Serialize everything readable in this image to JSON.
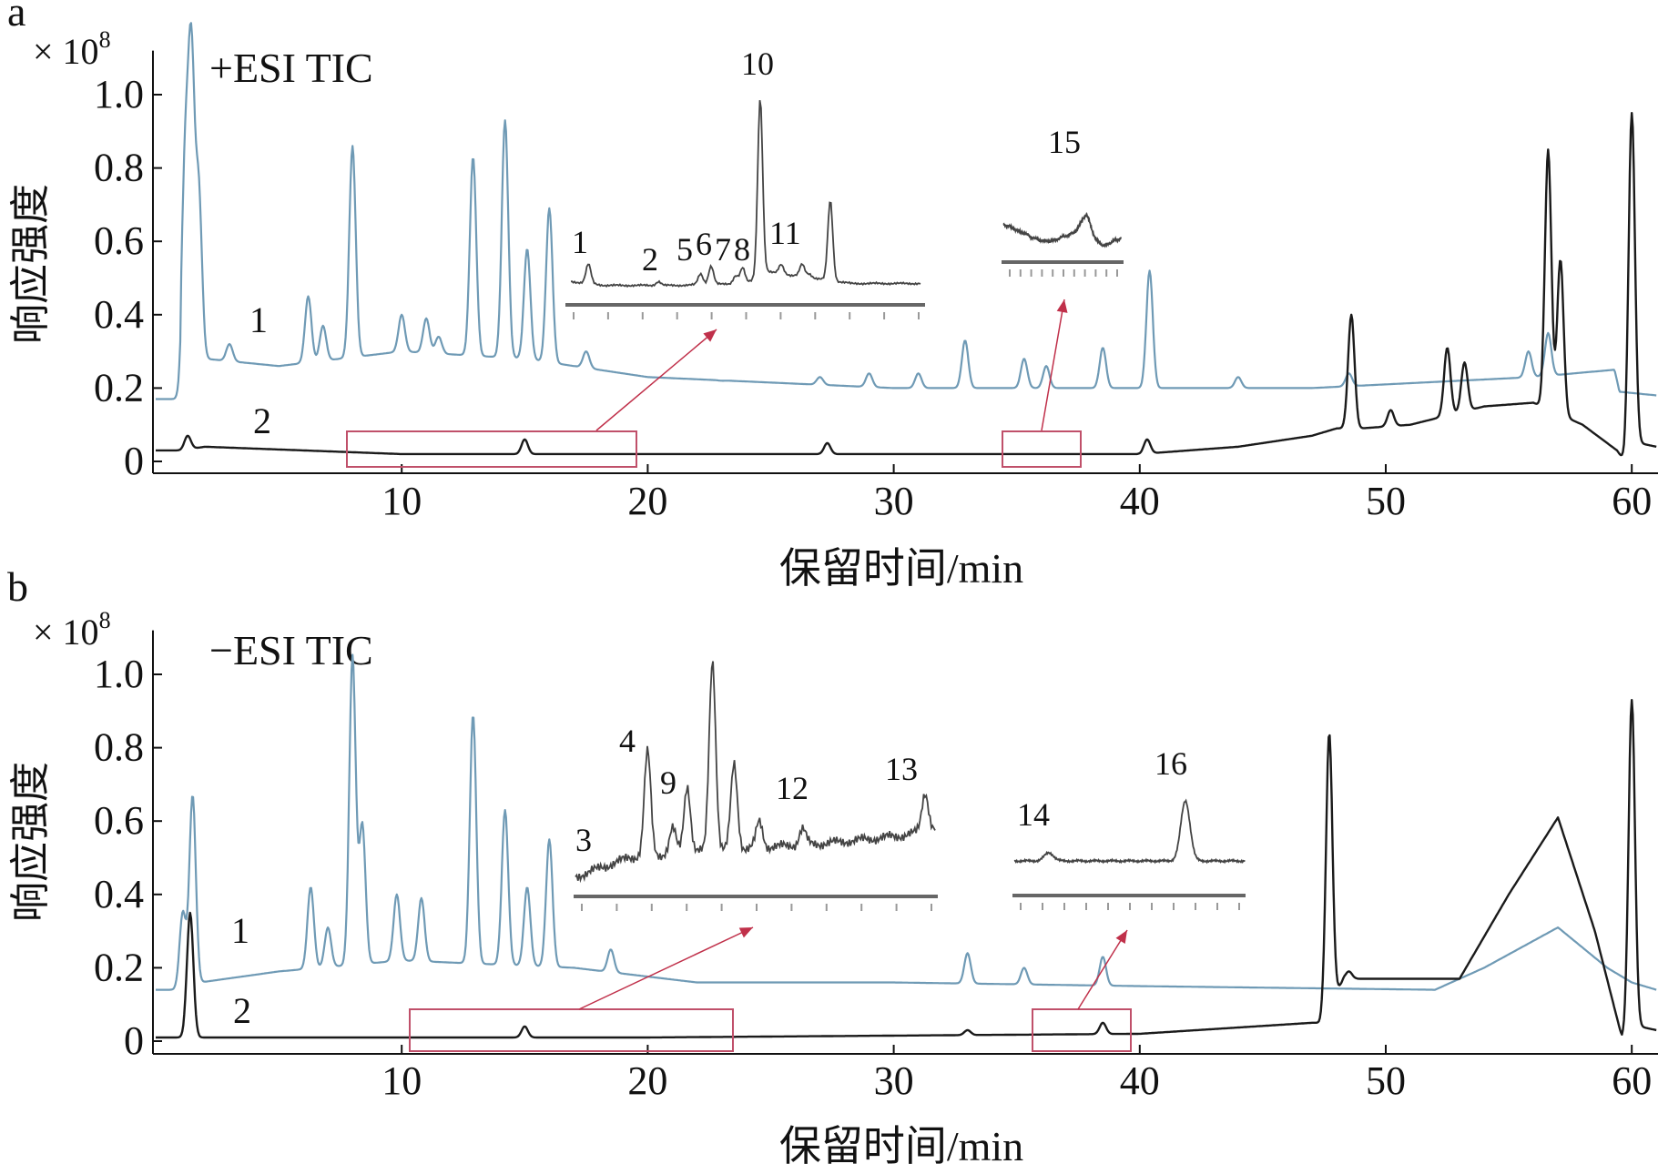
{
  "colors": {
    "trace1": "#6f9ab5",
    "trace2": "#1a1a1a",
    "box": "#c0506a",
    "arrow": "#c0304a"
  },
  "chart_data": [
    {
      "type": "line",
      "panel": "a",
      "title": "+ESI TIC",
      "multiplier": "× 10",
      "multiplier_exp": "8",
      "xlabel": "保留时间/min",
      "ylabel": "响应强度",
      "xlim": [
        0,
        61
      ],
      "ylim": [
        0,
        1.1
      ],
      "xticks": [
        "10",
        "20",
        "30",
        "40",
        "50",
        "60"
      ],
      "yticks": [
        "0",
        "0.2",
        "0.4",
        "0.6",
        "0.8",
        "1.0"
      ],
      "series": [
        {
          "name": "1",
          "color": "#6f9ab5",
          "baseline": [
            [
              0,
              0.17
            ],
            [
              1.0,
              0.17
            ],
            [
              1.05,
              0.3
            ],
            [
              2,
              0.28
            ],
            [
              5,
              0.26
            ],
            [
              10,
              0.3
            ],
            [
              15,
              0.28
            ],
            [
              20,
              0.23
            ],
            [
              30,
              0.2
            ],
            [
              40,
              0.2
            ],
            [
              47,
              0.2
            ],
            [
              56,
              0.23
            ],
            [
              59.3,
              0.25
            ],
            [
              59.5,
              0.19
            ],
            [
              61,
              0.18
            ]
          ],
          "peaks": [
            [
              1.2,
              0.8
            ],
            [
              1.45,
              1.08
            ],
            [
              1.75,
              0.73
            ],
            [
              3,
              0.32
            ],
            [
              6.2,
              0.45
            ],
            [
              6.8,
              0.37
            ],
            [
              8.0,
              0.86
            ],
            [
              10,
              0.4
            ],
            [
              11,
              0.39
            ],
            [
              11.5,
              0.34
            ],
            [
              12.9,
              0.83
            ],
            [
              14.2,
              0.93
            ],
            [
              15.1,
              0.58
            ],
            [
              16,
              0.69
            ],
            [
              17.5,
              0.3
            ],
            [
              23,
              0.22
            ],
            [
              27,
              0.23
            ],
            [
              29,
              0.24
            ],
            [
              31,
              0.24
            ],
            [
              32.9,
              0.33
            ],
            [
              35.3,
              0.28
            ],
            [
              36.2,
              0.26
            ],
            [
              38.5,
              0.31
            ],
            [
              40.4,
              0.52
            ],
            [
              44,
              0.23
            ],
            [
              48.5,
              0.24
            ],
            [
              55.8,
              0.3
            ],
            [
              56.6,
              0.35
            ]
          ]
        },
        {
          "name": "2",
          "color": "#1a1a1a",
          "baseline": [
            [
              0,
              0.03
            ],
            [
              1,
              0.03
            ],
            [
              2,
              0.04
            ],
            [
              10,
              0.02
            ],
            [
              30,
              0.02
            ],
            [
              40,
              0.02
            ],
            [
              44,
              0.04
            ],
            [
              47,
              0.07
            ],
            [
              48,
              0.09
            ],
            [
              49,
              0.09
            ],
            [
              51,
              0.1
            ],
            [
              54,
              0.15
            ],
            [
              56,
              0.16
            ],
            [
              58,
              0.1
            ],
            [
              59.4,
              0.03
            ],
            [
              59.7,
              0.0
            ],
            [
              60.3,
              0.05
            ],
            [
              61,
              0.04
            ]
          ],
          "peaks": [
            [
              1.3,
              0.07
            ],
            [
              15,
              0.06
            ],
            [
              27.3,
              0.05
            ],
            [
              40.3,
              0.06
            ],
            [
              48.6,
              0.4
            ],
            [
              50.2,
              0.14
            ],
            [
              52.5,
              0.31
            ],
            [
              53.2,
              0.27
            ],
            [
              56.6,
              0.85
            ],
            [
              57.1,
              0.55
            ],
            [
              60,
              0.95
            ]
          ]
        }
      ],
      "highlight_ranges": [
        [
          8,
          19.5
        ],
        [
          34.5,
          37.5
        ]
      ],
      "insets": [
        {
          "baseline": [
            [
              0,
              0.05
            ],
            [
              10,
              0.03
            ],
            [
              30,
              0.03
            ],
            [
              50,
              0.04
            ],
            [
              56,
              0.1
            ],
            [
              80,
              0.04
            ],
            [
              100,
              0.04
            ]
          ],
          "peaks": [
            [
              5,
              0.14
            ],
            [
              25,
              0.05
            ],
            [
              37,
              0.09
            ],
            [
              40,
              0.13
            ],
            [
              47,
              0.08
            ],
            [
              49,
              0.12
            ],
            [
              54,
              1.0
            ],
            [
              60,
              0.14
            ],
            [
              63,
              0.08
            ],
            [
              66,
              0.14
            ],
            [
              68,
              0.09
            ],
            [
              74,
              0.47
            ]
          ],
          "labels": [
            "1",
            "2",
            "5",
            "6",
            "7",
            "8",
            "10",
            "11"
          ]
        },
        {
          "baseline": [
            [
              0,
              0.6
            ],
            [
              10,
              0.5
            ],
            [
              30,
              0.3
            ],
            [
              40,
              0.28
            ],
            [
              55,
              0.4
            ],
            [
              63,
              0.45
            ],
            [
              85,
              0.2
            ],
            [
              100,
              0.35
            ]
          ],
          "peaks": [
            [
              70,
              0.75
            ]
          ],
          "labels": [
            "15"
          ]
        }
      ]
    },
    {
      "type": "line",
      "panel": "b",
      "title": "−ESI TIC",
      "multiplier": "× 10",
      "multiplier_exp": "8",
      "xlabel": "保留时间/min",
      "ylabel": "响应强度",
      "xlim": [
        0,
        61
      ],
      "ylim": [
        0,
        1.1
      ],
      "xticks": [
        "10",
        "20",
        "30",
        "40",
        "50",
        "60"
      ],
      "yticks": [
        "0",
        "0.2",
        "0.4",
        "0.6",
        "0.8",
        "1.0"
      ],
      "series": [
        {
          "name": "1",
          "color": "#6f9ab5",
          "baseline": [
            [
              0,
              0.14
            ],
            [
              1,
              0.14
            ],
            [
              1.8,
              0.16
            ],
            [
              5,
              0.19
            ],
            [
              10,
              0.22
            ],
            [
              17,
              0.2
            ],
            [
              22,
              0.16
            ],
            [
              30,
              0.16
            ],
            [
              40,
              0.15
            ],
            [
              52,
              0.14
            ],
            [
              54,
              0.2
            ],
            [
              57,
              0.31
            ],
            [
              59,
              0.2
            ],
            [
              60,
              0.16
            ],
            [
              61,
              0.14
            ]
          ],
          "peaks": [
            [
              1.1,
              0.35
            ],
            [
              1.5,
              0.67
            ],
            [
              6.3,
              0.42
            ],
            [
              7,
              0.31
            ],
            [
              8.0,
              1.05
            ],
            [
              8.4,
              0.59
            ],
            [
              9.8,
              0.4
            ],
            [
              10.8,
              0.39
            ],
            [
              12.9,
              0.89
            ],
            [
              14.2,
              0.63
            ],
            [
              15.1,
              0.42
            ],
            [
              16,
              0.55
            ],
            [
              18.5,
              0.25
            ],
            [
              33,
              0.24
            ],
            [
              35.3,
              0.2
            ],
            [
              38.5,
              0.23
            ]
          ]
        },
        {
          "name": "2",
          "color": "#1a1a1a",
          "baseline": [
            [
              0,
              0.01
            ],
            [
              1,
              0.01
            ],
            [
              20,
              0.01
            ],
            [
              40,
              0.02
            ],
            [
              47,
              0.05
            ],
            [
              47.3,
              0.05
            ],
            [
              48.3,
              0.17
            ],
            [
              53,
              0.17
            ],
            [
              55,
              0.4
            ],
            [
              57,
              0.61
            ],
            [
              58.5,
              0.3
            ],
            [
              59.6,
              0.01
            ],
            [
              60.3,
              0.04
            ],
            [
              61,
              0.03
            ]
          ],
          "peaks": [
            [
              1.4,
              0.35
            ],
            [
              15,
              0.04
            ],
            [
              33,
              0.03
            ],
            [
              38.5,
              0.05
            ],
            [
              47.7,
              0.84
            ],
            [
              48.5,
              0.19
            ],
            [
              60,
              0.93
            ]
          ]
        }
      ],
      "highlight_ranges": [
        [
          10.5,
          23.5
        ],
        [
          35.5,
          39.5
        ]
      ],
      "insets": [
        {
          "baseline": [
            [
              0,
              0.1
            ],
            [
              15,
              0.18
            ],
            [
              30,
              0.2
            ],
            [
              50,
              0.22
            ],
            [
              70,
              0.24
            ],
            [
              90,
              0.27
            ],
            [
              100,
              0.3
            ]
          ],
          "peaks": [
            [
              20,
              0.62
            ],
            [
              27,
              0.3
            ],
            [
              31,
              0.48
            ],
            [
              38,
              1.0
            ],
            [
              44,
              0.57
            ],
            [
              51,
              0.33
            ],
            [
              63,
              0.3
            ],
            [
              97,
              0.45
            ]
          ],
          "labels": [
            "3",
            "4",
            "9",
            "12",
            "13"
          ]
        },
        {
          "baseline": [
            [
              0,
              0.26
            ],
            [
              100,
              0.26
            ]
          ],
          "peaks": [
            [
              15,
              0.32
            ],
            [
              74,
              0.7
            ]
          ],
          "labels": [
            "14",
            "16"
          ]
        }
      ]
    }
  ]
}
